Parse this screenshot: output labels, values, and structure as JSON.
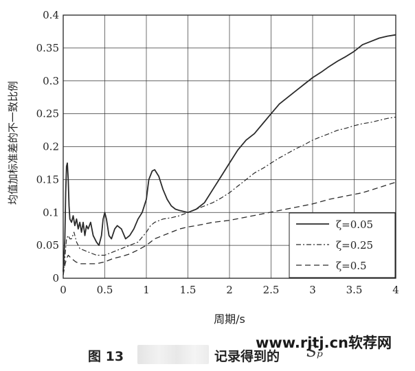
{
  "chart_data": {
    "type": "line",
    "xlabel": "周期/s",
    "ylabel": "均值加标准差的不一致比例",
    "xlim": [
      0,
      4
    ],
    "ylim": [
      0,
      0.4
    ],
    "xticks": [
      "0",
      "0.5",
      "1",
      "1.5",
      "2",
      "2.5",
      "3",
      "3.5",
      "4"
    ],
    "yticks": [
      "0",
      "0.05",
      "0.1",
      "0.15",
      "0.2",
      "0.25",
      "0.3",
      "0.35",
      "0.4"
    ],
    "grid": true,
    "legend_position": "bottom-right",
    "series": [
      {
        "name": "ζ=0.05",
        "style": "solid",
        "points": [
          [
            0.0,
            0.01
          ],
          [
            0.02,
            0.06
          ],
          [
            0.03,
            0.13
          ],
          [
            0.04,
            0.17
          ],
          [
            0.05,
            0.175
          ],
          [
            0.06,
            0.15
          ],
          [
            0.07,
            0.11
          ],
          [
            0.08,
            0.09
          ],
          [
            0.1,
            0.085
          ],
          [
            0.12,
            0.095
          ],
          [
            0.14,
            0.08
          ],
          [
            0.16,
            0.09
          ],
          [
            0.18,
            0.075
          ],
          [
            0.2,
            0.085
          ],
          [
            0.22,
            0.07
          ],
          [
            0.24,
            0.085
          ],
          [
            0.26,
            0.065
          ],
          [
            0.28,
            0.08
          ],
          [
            0.3,
            0.075
          ],
          [
            0.33,
            0.085
          ],
          [
            0.36,
            0.065
          ],
          [
            0.4,
            0.055
          ],
          [
            0.43,
            0.05
          ],
          [
            0.46,
            0.065
          ],
          [
            0.48,
            0.09
          ],
          [
            0.5,
            0.1
          ],
          [
            0.52,
            0.09
          ],
          [
            0.55,
            0.065
          ],
          [
            0.58,
            0.06
          ],
          [
            0.62,
            0.075
          ],
          [
            0.65,
            0.08
          ],
          [
            0.7,
            0.075
          ],
          [
            0.75,
            0.06
          ],
          [
            0.8,
            0.065
          ],
          [
            0.85,
            0.075
          ],
          [
            0.9,
            0.09
          ],
          [
            0.95,
            0.1
          ],
          [
            1.0,
            0.12
          ],
          [
            1.03,
            0.15
          ],
          [
            1.07,
            0.163
          ],
          [
            1.1,
            0.165
          ],
          [
            1.15,
            0.155
          ],
          [
            1.2,
            0.135
          ],
          [
            1.25,
            0.12
          ],
          [
            1.3,
            0.11
          ],
          [
            1.35,
            0.105
          ],
          [
            1.4,
            0.103
          ],
          [
            1.5,
            0.1
          ],
          [
            1.6,
            0.105
          ],
          [
            1.7,
            0.115
          ],
          [
            1.8,
            0.135
          ],
          [
            1.9,
            0.155
          ],
          [
            2.0,
            0.175
          ],
          [
            2.1,
            0.195
          ],
          [
            2.2,
            0.21
          ],
          [
            2.3,
            0.22
          ],
          [
            2.4,
            0.235
          ],
          [
            2.5,
            0.25
          ],
          [
            2.6,
            0.265
          ],
          [
            2.7,
            0.275
          ],
          [
            2.8,
            0.285
          ],
          [
            2.9,
            0.295
          ],
          [
            3.0,
            0.305
          ],
          [
            3.1,
            0.313
          ],
          [
            3.2,
            0.322
          ],
          [
            3.3,
            0.33
          ],
          [
            3.4,
            0.337
          ],
          [
            3.5,
            0.345
          ],
          [
            3.6,
            0.355
          ],
          [
            3.7,
            0.36
          ],
          [
            3.8,
            0.365
          ],
          [
            3.9,
            0.368
          ],
          [
            4.0,
            0.37
          ]
        ]
      },
      {
        "name": "ζ=0.25",
        "style": "dashdot",
        "points": [
          [
            0.0,
            0.005
          ],
          [
            0.02,
            0.03
          ],
          [
            0.04,
            0.06
          ],
          [
            0.06,
            0.065
          ],
          [
            0.08,
            0.06
          ],
          [
            0.1,
            0.06
          ],
          [
            0.13,
            0.07
          ],
          [
            0.16,
            0.055
          ],
          [
            0.2,
            0.045
          ],
          [
            0.3,
            0.04
          ],
          [
            0.4,
            0.035
          ],
          [
            0.5,
            0.035
          ],
          [
            0.6,
            0.04
          ],
          [
            0.7,
            0.045
          ],
          [
            0.8,
            0.05
          ],
          [
            0.9,
            0.055
          ],
          [
            1.0,
            0.07
          ],
          [
            1.05,
            0.08
          ],
          [
            1.1,
            0.085
          ],
          [
            1.2,
            0.09
          ],
          [
            1.3,
            0.092
          ],
          [
            1.4,
            0.095
          ],
          [
            1.5,
            0.1
          ],
          [
            1.6,
            0.105
          ],
          [
            1.7,
            0.11
          ],
          [
            1.8,
            0.115
          ],
          [
            1.9,
            0.122
          ],
          [
            2.0,
            0.13
          ],
          [
            2.1,
            0.14
          ],
          [
            2.2,
            0.15
          ],
          [
            2.3,
            0.16
          ],
          [
            2.4,
            0.167
          ],
          [
            2.5,
            0.175
          ],
          [
            2.6,
            0.183
          ],
          [
            2.7,
            0.19
          ],
          [
            2.8,
            0.197
          ],
          [
            2.9,
            0.203
          ],
          [
            3.0,
            0.21
          ],
          [
            3.1,
            0.215
          ],
          [
            3.2,
            0.22
          ],
          [
            3.3,
            0.225
          ],
          [
            3.4,
            0.228
          ],
          [
            3.5,
            0.232
          ],
          [
            3.6,
            0.235
          ],
          [
            3.7,
            0.237
          ],
          [
            3.8,
            0.24
          ],
          [
            3.9,
            0.243
          ],
          [
            4.0,
            0.245
          ]
        ]
      },
      {
        "name": "ζ=0.5",
        "style": "dashed",
        "points": [
          [
            0.0,
            0.005
          ],
          [
            0.02,
            0.02
          ],
          [
            0.04,
            0.03
          ],
          [
            0.06,
            0.035
          ],
          [
            0.1,
            0.03
          ],
          [
            0.15,
            0.025
          ],
          [
            0.2,
            0.022
          ],
          [
            0.3,
            0.022
          ],
          [
            0.4,
            0.022
          ],
          [
            0.5,
            0.025
          ],
          [
            0.6,
            0.03
          ],
          [
            0.7,
            0.033
          ],
          [
            0.8,
            0.037
          ],
          [
            0.9,
            0.043
          ],
          [
            1.0,
            0.05
          ],
          [
            1.1,
            0.06
          ],
          [
            1.2,
            0.065
          ],
          [
            1.3,
            0.07
          ],
          [
            1.4,
            0.075
          ],
          [
            1.5,
            0.078
          ],
          [
            1.6,
            0.08
          ],
          [
            1.8,
            0.085
          ],
          [
            2.0,
            0.088
          ],
          [
            2.2,
            0.093
          ],
          [
            2.4,
            0.098
          ],
          [
            2.6,
            0.103
          ],
          [
            2.8,
            0.108
          ],
          [
            3.0,
            0.113
          ],
          [
            3.2,
            0.12
          ],
          [
            3.4,
            0.125
          ],
          [
            3.6,
            0.13
          ],
          [
            3.8,
            0.138
          ],
          [
            4.0,
            0.146
          ]
        ]
      }
    ],
    "legend_labels": [
      "ζ=0.05",
      "ζ=0.25",
      "ζ=0.5"
    ]
  },
  "caption": {
    "figure_label": "图 13",
    "text": "记录得到的",
    "symbol": "Sₚ"
  },
  "watermark": "www.rjtj.cn软荐网"
}
